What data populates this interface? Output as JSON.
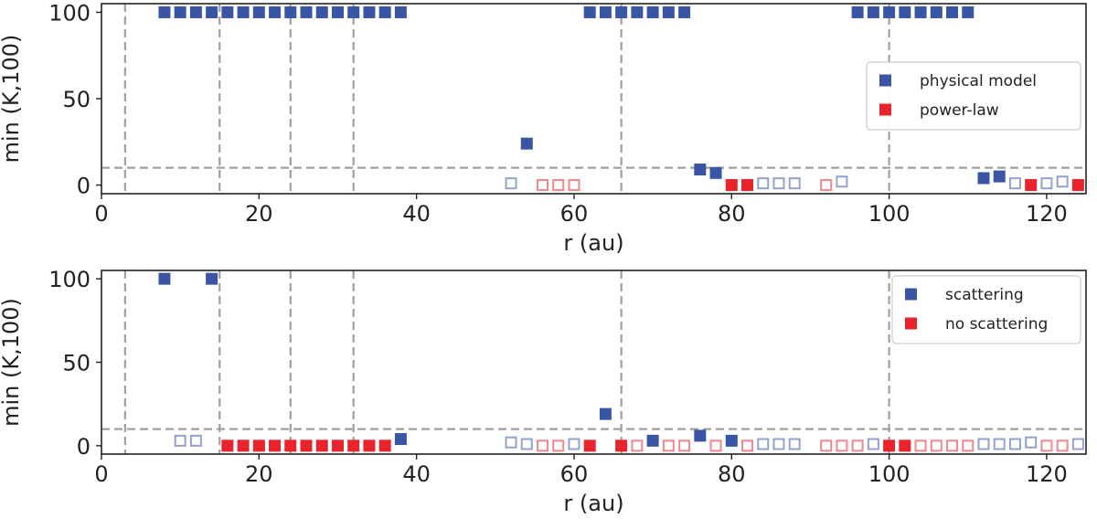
{
  "chart_data": [
    {
      "type": "scatter",
      "xlabel": "r (au)",
      "ylabel": "min (K,100)",
      "xlim": [
        0,
        125
      ],
      "ylim": [
        -5,
        105
      ],
      "xticks": [
        0,
        20,
        40,
        60,
        80,
        100,
        120
      ],
      "yticks": [
        0,
        50,
        100
      ],
      "vlines": [
        3,
        15,
        24,
        32,
        66,
        100
      ],
      "hline": 10,
      "grid": false,
      "legend_position": "right",
      "series": [
        {
          "name": "physical model",
          "color": "#3a55a4",
          "points": [
            [
              8,
              100
            ],
            [
              10,
              100
            ],
            [
              12,
              100
            ],
            [
              14,
              100
            ],
            [
              16,
              100
            ],
            [
              18,
              100
            ],
            [
              20,
              100
            ],
            [
              22,
              100
            ],
            [
              24,
              100
            ],
            [
              26,
              100
            ],
            [
              28,
              100
            ],
            [
              30,
              100
            ],
            [
              32,
              100
            ],
            [
              34,
              100
            ],
            [
              36,
              100
            ],
            [
              38,
              100
            ],
            [
              54,
              24
            ],
            [
              62,
              100
            ],
            [
              64,
              100
            ],
            [
              66,
              100
            ],
            [
              68,
              100
            ],
            [
              70,
              100
            ],
            [
              72,
              100
            ],
            [
              74,
              100
            ],
            [
              76,
              9
            ],
            [
              78,
              7
            ],
            [
              96,
              100
            ],
            [
              98,
              100
            ],
            [
              100,
              100
            ],
            [
              102,
              100
            ],
            [
              104,
              100
            ],
            [
              106,
              100
            ],
            [
              108,
              100
            ],
            [
              110,
              100
            ],
            [
              112,
              4
            ],
            [
              114,
              5
            ]
          ],
          "open_points": [
            [
              52,
              1
            ],
            [
              84,
              1
            ],
            [
              86,
              1
            ],
            [
              88,
              1
            ],
            [
              94,
              2
            ],
            [
              116,
              1
            ],
            [
              120,
              1
            ],
            [
              122,
              2
            ]
          ]
        },
        {
          "name": "power-law",
          "color": "#e8232b",
          "points": [
            [
              80,
              0
            ],
            [
              82,
              0
            ],
            [
              118,
              0
            ],
            [
              124,
              0
            ]
          ],
          "open_points": [
            [
              56,
              0
            ],
            [
              58,
              0
            ],
            [
              60,
              0
            ],
            [
              92,
              0
            ]
          ]
        }
      ]
    },
    {
      "type": "scatter",
      "xlabel": "r (au)",
      "ylabel": "min (K,100)",
      "xlim": [
        0,
        125
      ],
      "ylim": [
        -5,
        105
      ],
      "xticks": [
        0,
        20,
        40,
        60,
        80,
        100,
        120
      ],
      "yticks": [
        0,
        50,
        100
      ],
      "vlines": [
        3,
        15,
        24,
        32,
        66,
        100
      ],
      "hline": 10,
      "grid": false,
      "legend_position": "top-right",
      "series": [
        {
          "name": "scattering",
          "color": "#3a55a4",
          "points": [
            [
              8,
              100
            ],
            [
              14,
              100
            ],
            [
              38,
              4
            ],
            [
              64,
              19
            ],
            [
              70,
              3
            ],
            [
              76,
              6
            ],
            [
              80,
              3
            ]
          ],
          "open_points": [
            [
              10,
              3
            ],
            [
              12,
              3
            ],
            [
              52,
              2
            ],
            [
              54,
              1
            ],
            [
              60,
              1
            ],
            [
              84,
              1
            ],
            [
              86,
              1
            ],
            [
              88,
              1
            ],
            [
              98,
              1
            ],
            [
              112,
              1
            ],
            [
              114,
              1
            ],
            [
              116,
              1
            ],
            [
              118,
              2
            ],
            [
              124,
              1
            ]
          ]
        },
        {
          "name": "no scattering",
          "color": "#e8232b",
          "points": [
            [
              16,
              0
            ],
            [
              18,
              0
            ],
            [
              20,
              0
            ],
            [
              22,
              0
            ],
            [
              24,
              0
            ],
            [
              26,
              0
            ],
            [
              28,
              0
            ],
            [
              30,
              0
            ],
            [
              32,
              0
            ],
            [
              34,
              0
            ],
            [
              36,
              0
            ],
            [
              62,
              0
            ],
            [
              66,
              0
            ],
            [
              100,
              0
            ],
            [
              102,
              0
            ]
          ],
          "open_points": [
            [
              56,
              0
            ],
            [
              58,
              0
            ],
            [
              68,
              0
            ],
            [
              72,
              0
            ],
            [
              74,
              0
            ],
            [
              78,
              0
            ],
            [
              82,
              0
            ],
            [
              92,
              0
            ],
            [
              94,
              0
            ],
            [
              96,
              0
            ],
            [
              104,
              0
            ],
            [
              106,
              0
            ],
            [
              108,
              0
            ],
            [
              110,
              0
            ],
            [
              120,
              0
            ],
            [
              122,
              0
            ]
          ]
        }
      ]
    }
  ]
}
